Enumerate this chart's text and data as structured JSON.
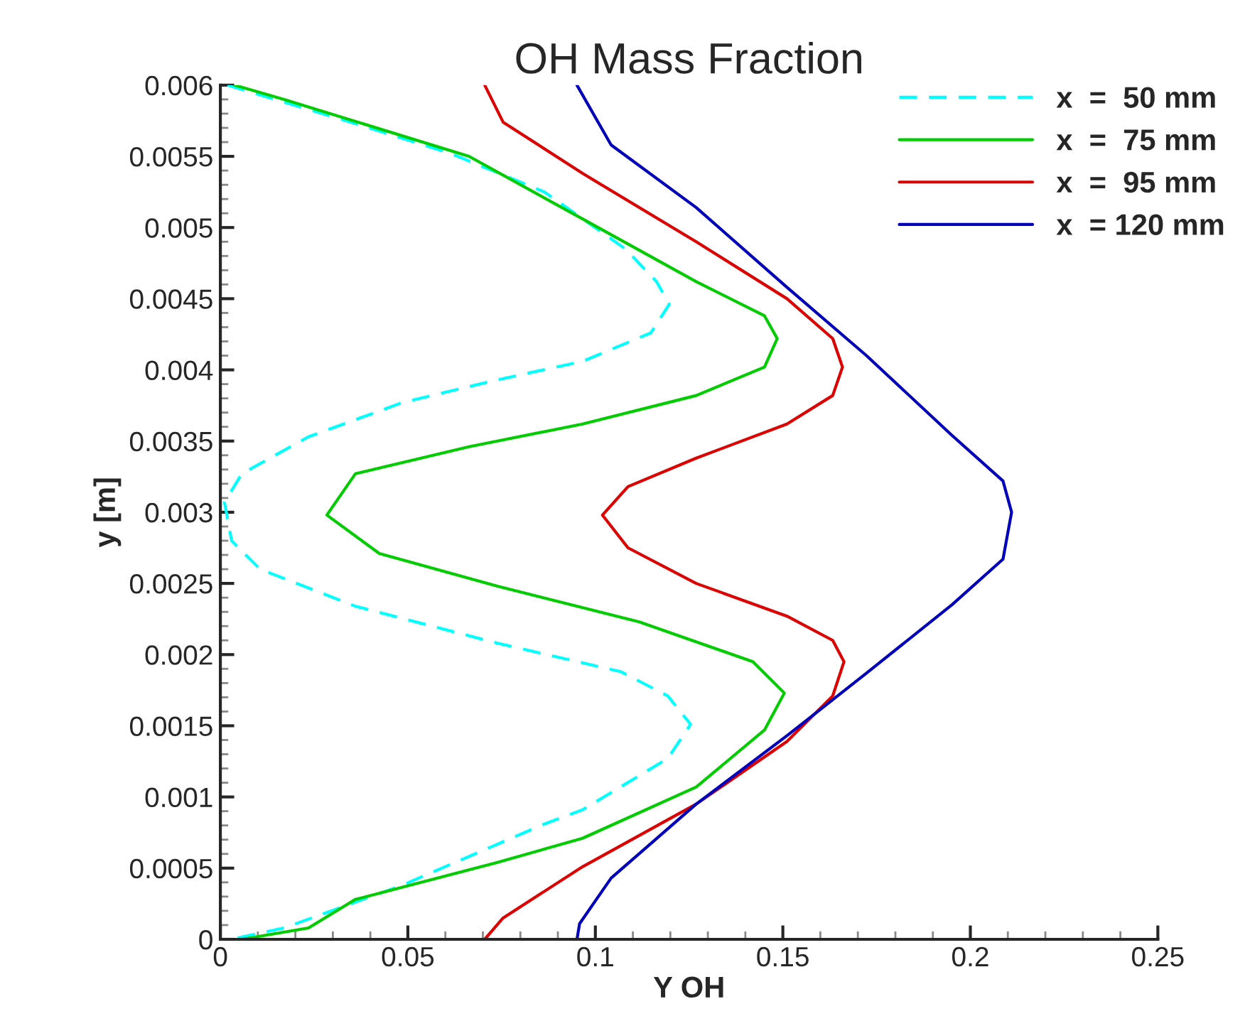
{
  "chart_data": {
    "type": "line",
    "title": "OH Mass Fraction",
    "xlabel": "Y OH",
    "ylabel": "y [m]",
    "xlim": [
      0,
      0.25
    ],
    "ylim": [
      0,
      0.006
    ],
    "xticks": [
      0,
      0.05,
      0.1,
      0.15,
      0.2,
      0.25
    ],
    "yticks": [
      0,
      0.0005,
      0.001,
      0.0015,
      0.002,
      0.0025,
      0.003,
      0.0035,
      0.004,
      0.0045,
      0.005,
      0.0055,
      0.006
    ],
    "grid": false,
    "legend": "top right",
    "marker": "none",
    "series": [
      {
        "name": "x  =  50 mm",
        "color": "#00ffff",
        "line_style": "dashed",
        "x": [
          0.0019,
          0.036,
          0.0614,
          0.0864,
          0.108,
          0.1163,
          0.1197,
          0.1148,
          0.0966,
          0.0739,
          0.0485,
          0.0235,
          0.0057,
          0.0011,
          0.003,
          0.0106,
          0.036,
          0.0739,
          0.1068,
          0.1193,
          0.1254,
          0.1193,
          0.0966,
          0.0864,
          0.0485,
          0.017,
          0.003
        ],
        "values": [
          0.006,
          0.00573,
          0.00552,
          0.00525,
          0.00485,
          0.00462,
          0.00446,
          0.00426,
          0.00406,
          0.00393,
          0.00377,
          0.00353,
          0.00327,
          0.00307,
          0.0028,
          0.0026,
          0.00234,
          0.00208,
          0.00188,
          0.00171,
          0.00151,
          0.00127,
          0.00091,
          0.00081,
          0.00038,
          8e-05,
          0
        ]
      },
      {
        "name": "x  =  75 mm",
        "color": "#00cc00",
        "line_style": "solid",
        "x": [
          0.0038,
          0.017,
          0.0663,
          0.0966,
          0.1269,
          0.1451,
          0.1485,
          0.1451,
          0.1269,
          0.0966,
          0.0663,
          0.036,
          0.0284,
          0.0424,
          0.0739,
          0.1117,
          0.142,
          0.1504,
          0.1451,
          0.1269,
          0.0966,
          0.0739,
          0.036,
          0.0235,
          0.0057
        ],
        "values": [
          0.006,
          0.0059,
          0.0055,
          0.00506,
          0.00462,
          0.00438,
          0.00422,
          0.00402,
          0.00382,
          0.00362,
          0.00346,
          0.00327,
          0.00298,
          0.00271,
          0.00248,
          0.00223,
          0.00195,
          0.00173,
          0.00147,
          0.00107,
          0.00071,
          0.00054,
          0.00028,
          8e-05,
          0
        ]
      },
      {
        "name": "x  =  95 mm",
        "color": "#dd0000",
        "line_style": "solid",
        "x": [
          0.0705,
          0.0754,
          0.0966,
          0.1269,
          0.1511,
          0.1633,
          0.1659,
          0.1633,
          0.1511,
          0.1269,
          0.1087,
          0.1019,
          0.1087,
          0.1269,
          0.1511,
          0.1633,
          0.1663,
          0.1633,
          0.1511,
          0.1269,
          0.0966,
          0.0754,
          0.0705
        ],
        "values": [
          0.006,
          0.00574,
          0.00538,
          0.0049,
          0.0045,
          0.00422,
          0.00402,
          0.00382,
          0.00362,
          0.00338,
          0.00318,
          0.00298,
          0.00275,
          0.0025,
          0.00227,
          0.0021,
          0.00195,
          0.00171,
          0.00139,
          0.00095,
          0.00051,
          0.00015,
          0
        ]
      },
      {
        "name": "x  = 120 mm",
        "color": "#0000bb",
        "line_style": "solid",
        "x": [
          0.0951,
          0.1042,
          0.1269,
          0.1511,
          0.1723,
          0.1951,
          0.2087,
          0.211,
          0.2087,
          0.1951,
          0.1723,
          0.1511,
          0.1269,
          0.1042,
          0.0958,
          0.0951
        ],
        "values": [
          0.006,
          0.00558,
          0.00514,
          0.00458,
          0.0041,
          0.00354,
          0.00322,
          0.003,
          0.00267,
          0.00235,
          0.00187,
          0.00143,
          0.00095,
          0.00043,
          0.00011,
          0
        ]
      }
    ]
  }
}
